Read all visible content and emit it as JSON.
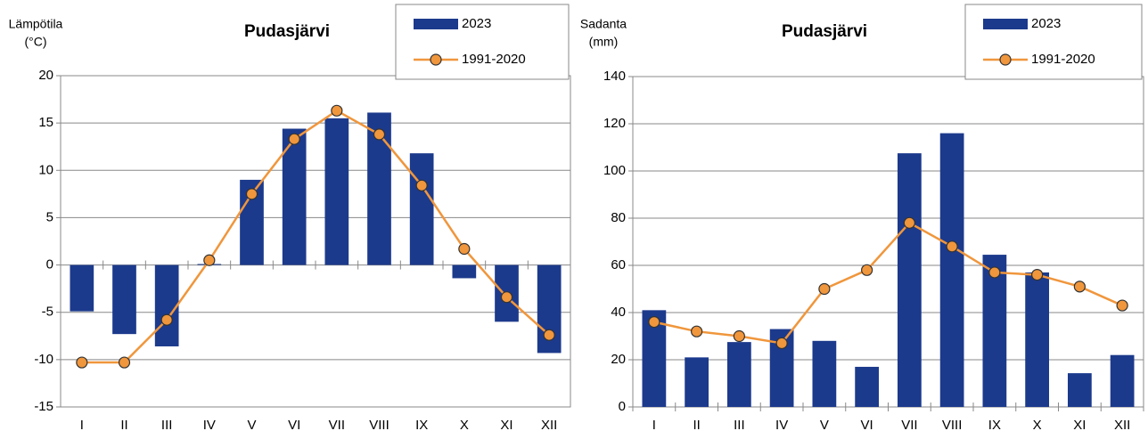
{
  "chart_data": [
    {
      "type": "bar_line",
      "title": "Pudasjärvi",
      "y_label": [
        "Lämpötila",
        "(°C)"
      ],
      "categories": [
        "I",
        "II",
        "III",
        "IV",
        "V",
        "VI",
        "VII",
        "VIII",
        "IX",
        "X",
        "XI",
        "XII"
      ],
      "series": [
        {
          "name": "2023",
          "kind": "bar",
          "color": "#1c3a8c",
          "values": [
            -4.9,
            -7.3,
            -8.6,
            0.1,
            9.0,
            14.4,
            15.5,
            16.1,
            11.8,
            -1.4,
            -6.0,
            -9.3
          ]
        },
        {
          "name": "1991-2020",
          "kind": "line",
          "color": "#f0963c",
          "values": [
            -10.3,
            -10.3,
            -5.8,
            0.5,
            7.5,
            13.3,
            16.3,
            13.8,
            8.4,
            1.7,
            -3.4,
            -7.4
          ]
        }
      ],
      "ylim": [
        -15,
        20
      ],
      "yticks": [
        -15,
        -10,
        -5,
        0,
        5,
        10,
        15,
        20
      ],
      "grid": true
    },
    {
      "type": "bar_line",
      "title": "Pudasjärvi",
      "y_label": [
        "Sadanta",
        "(mm)"
      ],
      "categories": [
        "I",
        "II",
        "III",
        "IV",
        "V",
        "VI",
        "VII",
        "VIII",
        "IX",
        "X",
        "XI",
        "XII"
      ],
      "series": [
        {
          "name": "2023",
          "kind": "bar",
          "color": "#1c3a8c",
          "values": [
            41,
            21,
            27.5,
            33,
            28,
            17,
            107.5,
            116,
            64.5,
            57,
            14.3,
            22
          ]
        },
        {
          "name": "1991-2020",
          "kind": "line",
          "color": "#f0963c",
          "values": [
            36,
            32,
            30,
            27,
            50,
            58,
            78,
            68,
            57,
            56,
            51,
            43
          ]
        }
      ],
      "ylim": [
        0,
        140
      ],
      "yticks": [
        0,
        20,
        40,
        60,
        80,
        100,
        120,
        140
      ],
      "grid": true
    }
  ]
}
